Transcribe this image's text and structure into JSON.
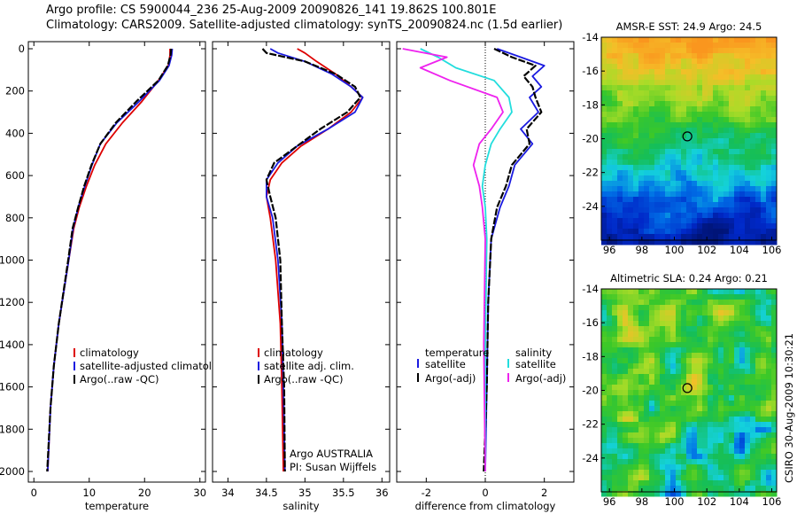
{
  "header": {
    "line1": "Argo profile: CS 5900044_236 25-Aug-2009 20090826_141 19.862S 100.801E",
    "line2": "Climatology: CARS2009. Satellite-adjusted climatology: synTS_20090824.nc (1.5d earlier)"
  },
  "colors": {
    "clim": "#dd0000",
    "sat": "#1a1ae0",
    "argo": "#000000",
    "sat_diff": "#22dddd",
    "argo_diff": "#ee22ee"
  },
  "credit": "CSIRO 30-Aug-2009 10:30:21",
  "chart_data": [
    {
      "type": "line",
      "id": "temperature",
      "xlabel": "temperature",
      "xlim": [
        -1,
        31
      ],
      "xticks": [
        0,
        10,
        20,
        30
      ],
      "ylim": [
        2050,
        0
      ],
      "yticks": [
        0,
        200,
        400,
        600,
        800,
        1000,
        1200,
        1400,
        1600,
        1800,
        2000
      ],
      "legend": {
        "position": "lower-right",
        "entries": [
          "climatology",
          "satellite-adjusted climatology",
          "Argo(..raw -QC)"
        ]
      },
      "series": [
        {
          "name": "climatology",
          "color": "#dd0000",
          "x": [
            24.6,
            24.6,
            24.3,
            22.5,
            19.5,
            16,
            13,
            11,
            9.5,
            8.2,
            7.2,
            6.3,
            4.5,
            3.6,
            3,
            2.5
          ],
          "y": [
            0,
            30,
            80,
            150,
            250,
            350,
            450,
            550,
            650,
            750,
            850,
            1000,
            1300,
            1500,
            1700,
            2000
          ]
        },
        {
          "name": "satellite-adjusted climatology",
          "color": "#1a1ae0",
          "x": [
            25,
            24.9,
            24.4,
            22.7,
            19,
            15,
            12,
            10.5,
            9.2,
            8,
            7.1,
            6.3,
            4.5,
            3.6,
            3,
            2.5
          ],
          "y": [
            0,
            30,
            80,
            150,
            250,
            350,
            450,
            550,
            650,
            750,
            850,
            1000,
            1300,
            1500,
            1700,
            2000
          ]
        },
        {
          "name": "Argo(..raw -QC)",
          "color": "#000000",
          "x": [
            24.8,
            24.7,
            24.2,
            22.5,
            18.5,
            14.8,
            12,
            10.4,
            9.1,
            8,
            7,
            6.2,
            4.5,
            3.6,
            3,
            2.4
          ],
          "y": [
            0,
            30,
            80,
            150,
            250,
            350,
            450,
            550,
            650,
            750,
            850,
            1000,
            1300,
            1500,
            1700,
            2000
          ]
        }
      ]
    },
    {
      "type": "line",
      "id": "salinity",
      "xlabel": "salinity",
      "xlim": [
        33.8,
        36.1
      ],
      "xticks": [
        34,
        34.5,
        35,
        35.5,
        36
      ],
      "ylim": [
        2050,
        0
      ],
      "legend": {
        "position": "lower-right",
        "entries": [
          "climatology",
          "satellite adj. clim.",
          "Argo(..raw -QC)"
        ]
      },
      "annotation": [
        "Argo AUSTRALIA",
        "PI: Susan Wijffels"
      ],
      "series": [
        {
          "name": "climatology",
          "color": "#dd0000",
          "x": [
            34.9,
            35.0,
            35.15,
            35.4,
            35.6,
            35.75,
            35.6,
            35.3,
            34.95,
            34.7,
            34.55,
            34.5,
            34.55,
            34.62,
            34.68,
            34.7,
            34.72
          ],
          "y": [
            0,
            20,
            60,
            120,
            180,
            230,
            300,
            380,
            460,
            540,
            620,
            700,
            800,
            1000,
            1300,
            1600,
            2000
          ]
        },
        {
          "name": "satellite adj. clim.",
          "color": "#1a1ae0",
          "x": [
            34.55,
            34.65,
            35.0,
            35.35,
            35.6,
            35.75,
            35.65,
            35.3,
            34.9,
            34.65,
            34.5,
            34.5,
            34.58,
            34.65,
            34.7,
            34.72,
            34.74
          ],
          "y": [
            0,
            20,
            60,
            120,
            180,
            230,
            300,
            380,
            460,
            540,
            620,
            700,
            800,
            1000,
            1300,
            1600,
            2000
          ]
        },
        {
          "name": "Argo(..raw -QC)",
          "color": "#000000",
          "x": [
            34.45,
            34.5,
            35.0,
            35.4,
            35.65,
            35.72,
            35.55,
            35.2,
            34.9,
            34.6,
            34.5,
            34.55,
            34.62,
            34.68,
            34.7,
            34.73,
            34.74
          ],
          "y": [
            0,
            20,
            60,
            120,
            180,
            230,
            300,
            380,
            460,
            540,
            620,
            700,
            800,
            1000,
            1300,
            1600,
            2000
          ]
        }
      ]
    },
    {
      "type": "line",
      "id": "difference",
      "xlabel": "difference from climatology",
      "xlim": [
        -3,
        3
      ],
      "xticks": [
        -2,
        0,
        2
      ],
      "ylim": [
        2050,
        0
      ],
      "legend": {
        "position": "lower-right",
        "group_titles": [
          "temperature",
          "salinity"
        ],
        "entries": [
          "satellite",
          "Argo(-adj)",
          "satellite",
          "Argo(-adj)"
        ]
      },
      "series": [
        {
          "name": "temperature satellite",
          "color": "#1a1ae0",
          "x": [
            0.4,
            1.2,
            2.0,
            1.6,
            1.9,
            1.5,
            1.8,
            1.2,
            1.6,
            1.0,
            0.8,
            0.5,
            0.2,
            0.1,
            0.05,
            0.0
          ],
          "y": [
            0,
            40,
            80,
            130,
            180,
            230,
            300,
            380,
            450,
            550,
            650,
            750,
            900,
            1200,
            1600,
            2000
          ]
        },
        {
          "name": "temperature Argo(-adj)",
          "color": "#000000",
          "x": [
            0.3,
            0.9,
            1.7,
            1.3,
            1.6,
            1.7,
            1.9,
            1.4,
            1.5,
            0.9,
            0.7,
            0.4,
            0.2,
            0.1,
            0.05,
            -0.05
          ],
          "y": [
            0,
            40,
            80,
            130,
            180,
            230,
            300,
            380,
            450,
            550,
            650,
            750,
            900,
            1200,
            1600,
            2000
          ]
        },
        {
          "name": "salinity satellite",
          "color": "#22dddd",
          "x": [
            -2.2,
            -1.6,
            -1.0,
            0.3,
            0.8,
            0.9,
            0.5,
            0.2,
            0.0,
            -0.1,
            0.0,
            0.05,
            0.0,
            0.0
          ],
          "y": [
            0,
            40,
            90,
            150,
            230,
            300,
            380,
            450,
            550,
            650,
            750,
            900,
            1400,
            2000
          ]
        },
        {
          "name": "salinity Argo(-adj)",
          "color": "#ee22ee",
          "x": [
            -2.8,
            -1.3,
            -2.2,
            -1.2,
            0.4,
            0.6,
            0.2,
            -0.2,
            -0.4,
            -0.2,
            -0.1,
            0.0,
            -0.05,
            0.0
          ],
          "y": [
            0,
            40,
            90,
            150,
            230,
            300,
            380,
            450,
            550,
            650,
            750,
            900,
            1400,
            2000
          ]
        }
      ]
    },
    {
      "type": "heatmap",
      "id": "sst-map",
      "title": "AMSR-E SST: 24.9 Argo: 24.5",
      "xlim": [
        95.5,
        106.3
      ],
      "ylim": [
        -26,
        -14
      ],
      "xticks": [
        96,
        98,
        100,
        102,
        104,
        106
      ],
      "yticks": [
        -14,
        -16,
        -18,
        -20,
        -22,
        -24
      ],
      "marker": {
        "lon": 100.801,
        "lat": -19.862
      }
    },
    {
      "type": "heatmap",
      "id": "sla-map",
      "title": "Altimetric SLA: 0.24 Argo: 0.21",
      "xlim": [
        95.5,
        106.3
      ],
      "ylim": [
        -26,
        -14
      ],
      "xticks": [
        96,
        98,
        100,
        102,
        104,
        106
      ],
      "yticks": [
        -14,
        -16,
        -18,
        -20,
        -22,
        -24
      ],
      "marker": {
        "lon": 100.801,
        "lat": -19.862
      }
    }
  ]
}
